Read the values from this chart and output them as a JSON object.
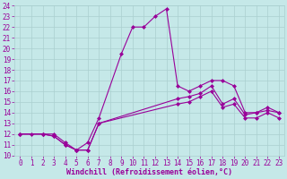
{
  "xlabel": "Windchill (Refroidissement éolien,°C)",
  "bg_color": "#c5e8e8",
  "line_color": "#990099",
  "grid_color": "#aacfcf",
  "xlim": [
    -0.5,
    23.5
  ],
  "ylim": [
    10,
    24
  ],
  "xticks": [
    0,
    1,
    2,
    3,
    4,
    5,
    6,
    7,
    8,
    9,
    10,
    11,
    12,
    13,
    14,
    15,
    16,
    17,
    18,
    19,
    20,
    21,
    22,
    23
  ],
  "yticks": [
    10,
    11,
    12,
    13,
    14,
    15,
    16,
    17,
    18,
    19,
    20,
    21,
    22,
    23,
    24
  ],
  "line1_x": [
    0,
    1,
    2,
    3,
    4,
    5,
    6,
    7,
    9,
    10,
    11,
    12,
    13,
    14,
    15,
    16,
    17,
    18,
    19,
    20,
    21,
    22,
    23
  ],
  "line1_y": [
    12,
    12,
    12,
    12,
    11.2,
    10.5,
    11.2,
    13.5,
    19.5,
    22,
    22,
    23,
    23.7,
    16.5,
    16,
    16.5,
    17,
    17,
    16.5,
    14,
    14,
    14.5,
    14
  ],
  "line2_x": [
    0,
    2,
    3,
    4,
    5,
    6,
    7,
    14,
    15,
    16,
    17,
    18,
    19,
    20,
    21,
    22,
    23
  ],
  "line2_y": [
    12,
    12,
    11.8,
    11,
    10.5,
    10.5,
    13,
    15.3,
    15.5,
    15.8,
    16.5,
    14.8,
    15.3,
    13.8,
    14,
    14.2,
    14
  ],
  "line3_x": [
    0,
    2,
    3,
    4,
    5,
    6,
    7,
    14,
    15,
    16,
    17,
    18,
    19,
    20,
    21,
    22,
    23
  ],
  "line3_y": [
    12,
    12,
    11.8,
    11,
    10.5,
    10.5,
    13,
    14.8,
    15,
    15.5,
    16,
    14.5,
    14.8,
    13.5,
    13.5,
    14,
    13.5
  ],
  "marker": "D",
  "markersize": 2.0,
  "linewidth": 0.8,
  "tick_fontsize": 5.5,
  "xlabel_fontsize": 6.0
}
